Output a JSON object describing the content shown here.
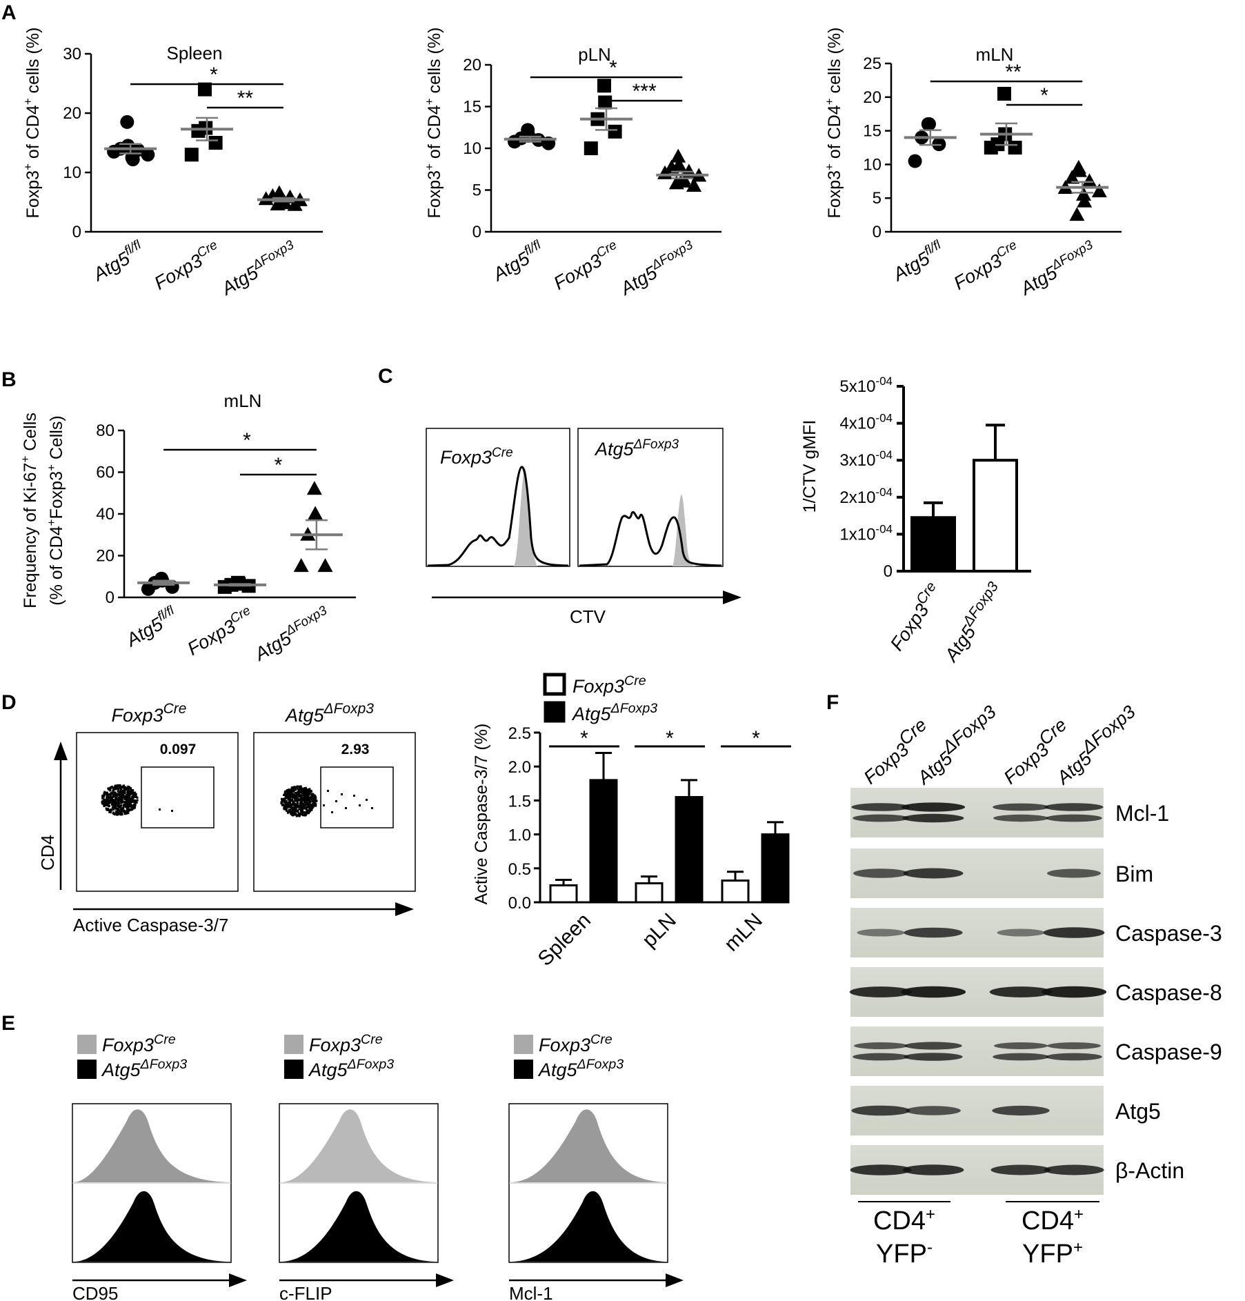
{
  "panel_labels": {
    "A": "A",
    "B": "B",
    "C": "C",
    "D": "D",
    "E": "E",
    "F": "F"
  },
  "genotypes": {
    "fl": {
      "base": "Atg5",
      "sup": "fl/fl"
    },
    "cre": {
      "base": "Foxp3",
      "sup": "Cre"
    },
    "delta": {
      "base": "Atg5",
      "sup": "ΔFoxp3"
    }
  },
  "chart_data": [
    {
      "id": "A-spleen",
      "type": "scatter",
      "title": "Spleen",
      "ylabel": "Foxp3+ of CD4+ cells (%)",
      "ylim": [
        0,
        30
      ],
      "yticks": [
        0,
        10,
        20,
        30
      ],
      "categories": [
        "Atg5fl/fl",
        "Foxp3Cre",
        "Atg5ΔFoxp3"
      ],
      "series": [
        {
          "points": [
            18.5,
            14.5,
            14,
            13.8,
            13.5,
            13,
            12.5,
            12.2
          ],
          "mean": 14,
          "sem": 0.8
        },
        {
          "points": [
            24,
            17.5,
            17,
            15,
            13
          ],
          "mean": 17.3,
          "sem": 1.9
        },
        {
          "points": [
            6.5,
            6.2,
            6,
            5.8,
            5.5,
            5.3,
            5,
            4.8,
            4.6,
            4.5
          ],
          "mean": 5.4,
          "sem": 0.3
        }
      ],
      "significance": [
        {
          "from": 0,
          "to": 2,
          "label": "*"
        },
        {
          "from": 1,
          "to": 2,
          "label": "**"
        }
      ]
    },
    {
      "id": "A-pLN",
      "type": "scatter",
      "title": "pLN",
      "ylabel": "Foxp3+ of CD4+ cells (%)",
      "ylim": [
        0,
        20
      ],
      "yticks": [
        0,
        5,
        10,
        15,
        20
      ],
      "categories": [
        "Atg5fl/fl",
        "Foxp3Cre",
        "Atg5ΔFoxp3"
      ],
      "series": [
        {
          "points": [
            12.2,
            11.5,
            11.2,
            11,
            10.8,
            10.6
          ],
          "mean": 11.1,
          "sem": 0.3
        },
        {
          "points": [
            17.5,
            15.5,
            13.5,
            12,
            10
          ],
          "mean": 13.5,
          "sem": 1.3
        },
        {
          "points": [
            9,
            8,
            7.7,
            7.2,
            7,
            6.7,
            6.4,
            6,
            5.8,
            5.5
          ],
          "mean": 6.8,
          "sem": 0.4
        }
      ],
      "significance": [
        {
          "from": 0,
          "to": 2,
          "label": "*"
        },
        {
          "from": 1,
          "to": 2,
          "label": "***"
        }
      ]
    },
    {
      "id": "A-mLN",
      "type": "scatter",
      "title": "mLN",
      "ylabel": "Foxp3+ of CD4+ cells (%)",
      "ylim": [
        0,
        25
      ],
      "yticks": [
        0,
        5,
        10,
        15,
        20,
        25
      ],
      "categories": [
        "Atg5fl/fl",
        "Foxp3Cre",
        "Atg5ΔFoxp3"
      ],
      "series": [
        {
          "points": [
            16,
            16,
            14,
            13,
            10.5
          ],
          "mean": 14,
          "sem": 1.1
        },
        {
          "points": [
            20.5,
            14.5,
            13,
            12.5,
            12.5
          ],
          "mean": 14.5,
          "sem": 1.6
        },
        {
          "points": [
            9.5,
            9,
            8,
            7.5,
            6.5,
            6,
            5.5,
            4.5,
            2.5
          ],
          "mean": 6.6,
          "sem": 0.8
        }
      ],
      "significance": [
        {
          "from": 0,
          "to": 2,
          "label": "**"
        },
        {
          "from": 1,
          "to": 2,
          "label": "*"
        }
      ]
    },
    {
      "id": "B-mLN",
      "type": "scatter",
      "title": "mLN",
      "ylabel_line1": "Frequency of Ki-67+ Cells",
      "ylabel_line2": "(% of CD4+Foxp3+ Cells)",
      "ylim": [
        0,
        80
      ],
      "yticks": [
        0,
        20,
        40,
        60,
        80
      ],
      "categories": [
        "Atg5fl/fl",
        "Foxp3Cre",
        "Atg5ΔFoxp3"
      ],
      "series": [
        {
          "points": [
            9,
            8,
            7,
            5,
            4
          ],
          "mean": 7,
          "sem": 1
        },
        {
          "points": [
            7,
            6.5,
            6,
            5.5,
            5
          ],
          "mean": 6,
          "sem": 0.4
        },
        {
          "points": [
            52,
            40,
            30,
            15,
            15
          ],
          "mean": 30,
          "sem": 7
        }
      ],
      "significance": [
        {
          "from": 0,
          "to": 2,
          "label": "*"
        },
        {
          "from": 1,
          "to": 2,
          "label": "*"
        }
      ]
    },
    {
      "id": "C-bar",
      "type": "bar",
      "ylabel": "1/CTV gMFI",
      "ylim": [
        0,
        0.0005
      ],
      "yticks": [
        "0",
        "1x10-04",
        "2x10-04",
        "3x10-04",
        "4x10-04",
        "5x10-04"
      ],
      "categories": [
        "Foxp3Cre",
        "Atg5ΔFoxp3"
      ],
      "values": [
        0.000145,
        0.0003
      ],
      "errors": [
        4e-05,
        9.5e-05
      ]
    },
    {
      "id": "D-bar",
      "type": "bar",
      "ylabel": "Active Caspase-3/7 (%)",
      "ylim": [
        0,
        2.5
      ],
      "yticks": [
        "0.0",
        "0.5",
        "1.0",
        "1.5",
        "2.0",
        "2.5"
      ],
      "categories": [
        "Spleen",
        "pLN",
        "mLN"
      ],
      "series": [
        {
          "name": "Foxp3Cre",
          "values": [
            0.25,
            0.28,
            0.32
          ],
          "errors": [
            0.08,
            0.1,
            0.13
          ]
        },
        {
          "name": "Atg5ΔFoxp3",
          "values": [
            1.8,
            1.55,
            1.0
          ],
          "errors": [
            0.4,
            0.25,
            0.18
          ]
        }
      ],
      "significance": [
        "*",
        "*",
        "*"
      ]
    }
  ],
  "panelC": {
    "axis_label": "CTV",
    "hist1_label": "Foxp3",
    "hist1_sup": "Cre",
    "hist2_label": "Atg5",
    "hist2_sup": "ΔFoxp3"
  },
  "panelD": {
    "plot1_title": "Foxp3",
    "plot1_sup": "Cre",
    "plot1_value": "0.097",
    "plot2_title": "Atg5",
    "plot2_sup": "ΔFoxp3",
    "plot2_value": "2.93",
    "xaxis": "Active Caspase-3/7",
    "yaxis": "CD4"
  },
  "panelE": {
    "legend_gray": "Foxp3",
    "legend_gray_sup": "Cre",
    "legend_black": "Atg5",
    "legend_black_sup": "ΔFoxp3",
    "axes": [
      "CD95",
      "c-FLIP",
      "Mcl-1"
    ]
  },
  "panelF": {
    "lanes": [
      {
        "base": "Foxp3",
        "sup": "Cre"
      },
      {
        "base": "Atg5",
        "sup": "ΔFoxp3"
      },
      {
        "base": "Foxp3",
        "sup": "Cre"
      },
      {
        "base": "Atg5",
        "sup": "ΔFoxp3"
      }
    ],
    "bands": [
      "Mcl-1",
      "Bim",
      "Caspase-3",
      "Caspase-8",
      "Caspase-9",
      "Atg5",
      "β-Actin"
    ],
    "groups": [
      {
        "line1": "CD4",
        "sup1": "+",
        "line2": "YFP",
        "sup2": "-"
      },
      {
        "line1": "CD4",
        "sup1": "+",
        "line2": "YFP",
        "sup2": "+"
      }
    ]
  }
}
